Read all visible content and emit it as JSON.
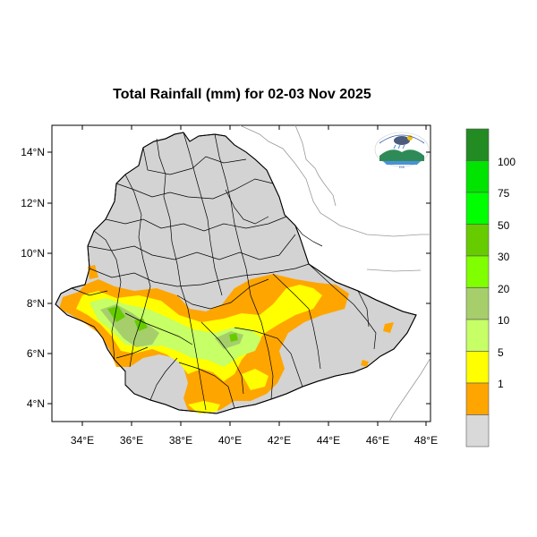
{
  "title": "Total Rainfall (mm) for 02-03 Nov 2025",
  "lat_labels": [
    "14°N",
    "12°N",
    "10°N",
    "8°N",
    "6°N",
    "4°N"
  ],
  "lon_labels": [
    "34°E",
    "36°E",
    "38°E",
    "40°E",
    "42°E",
    "44°E",
    "46°E",
    "48°E"
  ],
  "legend": {
    "ticks": [
      "100",
      "75",
      "50",
      "30",
      "20",
      "10",
      "5",
      "1"
    ],
    "colors": [
      "#228b22",
      "#00e400",
      "#00ff00",
      "#66cc00",
      "#7fff00",
      "#a6cf6b",
      "#c6ff66",
      "#ffff00",
      "#ffa500",
      "#d9d9d9"
    ]
  },
  "colors": {
    "land": "#d3d3d3",
    "boundary": "#000000",
    "neighbor": "#999999",
    "orange": "#ffa500",
    "yellow": "#ffff00",
    "light_green": "#c6ff66",
    "mid_green": "#a6cf6b",
    "dark_green": "#66cc00"
  },
  "logo": {
    "icon": "ethiopian-meteorology-institute-logo"
  }
}
